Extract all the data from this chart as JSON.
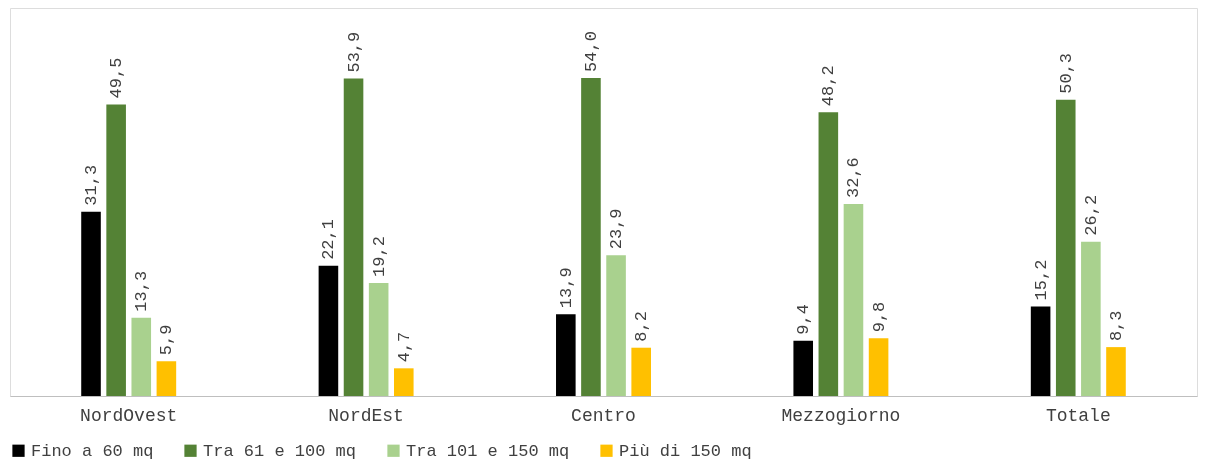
{
  "chart_data": {
    "type": "bar",
    "categories": [
      "NordOvest",
      "NordEst",
      "Centro",
      "Mezzogiorno",
      "Totale"
    ],
    "series": [
      {
        "name": "Fino a 60 mq",
        "color": "#000000",
        "values": [
          31.3,
          22.1,
          13.9,
          9.4,
          15.2
        ],
        "value_labels": [
          "31,3",
          "22,1",
          "13,9",
          "9,4",
          "15,2"
        ]
      },
      {
        "name": "Tra 61 e 100 mq",
        "color": "#548235",
        "values": [
          49.5,
          53.9,
          54.0,
          48.2,
          50.3
        ],
        "value_labels": [
          "49,5",
          "53,9",
          "54,0",
          "48,2",
          "50,3"
        ]
      },
      {
        "name": "Tra 101 e 150 mq",
        "color": "#a9d18e",
        "values": [
          13.3,
          19.2,
          23.9,
          32.6,
          26.2
        ],
        "value_labels": [
          "13,3",
          "19,2",
          "23,9",
          "32,6",
          "26,2"
        ]
      },
      {
        "name": "Più di 150 mq",
        "color": "#ffc000",
        "values": [
          5.9,
          4.7,
          8.2,
          9.8,
          8.3
        ],
        "value_labels": [
          "5,9",
          "4,7",
          "8,2",
          "9,8",
          "8,3"
        ]
      }
    ],
    "legend": "bottom",
    "grid": false
  }
}
